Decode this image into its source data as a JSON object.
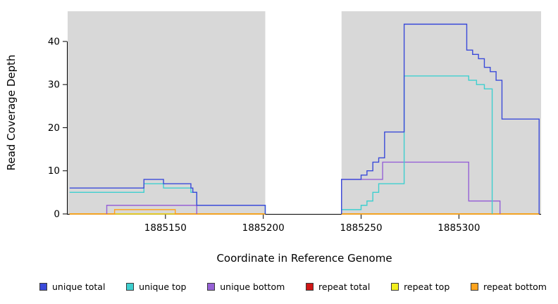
{
  "chart_data": {
    "type": "line",
    "line_style": "step-after",
    "title": "",
    "xlabel": "Coordinate in Reference Genome",
    "ylabel": "Read Coverage Depth",
    "xlim": [
      1885100,
      1885342
    ],
    "ylim": [
      0,
      47
    ],
    "xticks": [
      1885150,
      1885200,
      1885250,
      1885300
    ],
    "yticks": [
      0,
      10,
      20,
      30,
      40
    ],
    "grid": false,
    "panel_bg": "#d8d8d8",
    "axis_color": "#000000",
    "gap_region": {
      "x0": 1885201,
      "x1": 1885240,
      "color": "#ffffff"
    },
    "legend_position": "bottom",
    "legend": [
      "unique total",
      "unique top",
      "unique bottom",
      "repeat total",
      "repeat top",
      "repeat bottom"
    ],
    "series": [
      {
        "name": "repeat total",
        "color": "#d01616",
        "segments": [
          [
            [
              1885101,
              0
            ],
            [
              1885201,
              0
            ]
          ],
          [
            [
              1885240,
              0
            ],
            [
              1885341,
              0
            ]
          ]
        ]
      },
      {
        "name": "repeat top",
        "color": "#f2ef1d",
        "segments": [
          [
            [
              1885101,
              0
            ],
            [
              1885201,
              0
            ]
          ],
          [
            [
              1885240,
              0
            ],
            [
              1885341,
              0
            ]
          ]
        ]
      },
      {
        "name": "repeat bottom",
        "color": "#ffa41e",
        "segments": [
          [
            [
              1885101,
              0
            ],
            [
              1885124,
              1
            ],
            [
              1885155,
              0
            ],
            [
              1885201,
              0
            ]
          ],
          [
            [
              1885240,
              0
            ],
            [
              1885341,
              0
            ]
          ]
        ]
      },
      {
        "name": "unique bottom",
        "color": "#9661d6",
        "segments": [
          [
            [
              1885120,
              0
            ],
            [
              1885120,
              2
            ],
            [
              1885166,
              0
            ]
          ],
          [
            [
              1885240,
              0
            ],
            [
              1885240,
              8
            ],
            [
              1885261,
              12
            ],
            [
              1885305,
              3
            ],
            [
              1885321,
              0
            ]
          ]
        ]
      },
      {
        "name": "unique top",
        "color": "#3ecfcf",
        "segments": [
          [
            [
              1885101,
              5
            ],
            [
              1885139,
              7
            ],
            [
              1885149,
              6
            ],
            [
              1885163,
              5
            ],
            [
              1885166,
              2
            ],
            [
              1885201,
              0
            ]
          ],
          [
            [
              1885240,
              0
            ],
            [
              1885240,
              1
            ],
            [
              1885250,
              2
            ],
            [
              1885253,
              3
            ],
            [
              1885256,
              5
            ],
            [
              1885259,
              7
            ],
            [
              1885272,
              32
            ],
            [
              1885305,
              31
            ],
            [
              1885309,
              30
            ],
            [
              1885313,
              29
            ],
            [
              1885317,
              0
            ]
          ]
        ]
      },
      {
        "name": "unique total",
        "color": "#3a4ad9",
        "segments": [
          [
            [
              1885101,
              6
            ],
            [
              1885139,
              8
            ],
            [
              1885149,
              7
            ],
            [
              1885163,
              6
            ],
            [
              1885164,
              5
            ],
            [
              1885166,
              2
            ],
            [
              1885201,
              0
            ]
          ],
          [
            [
              1885240,
              0
            ],
            [
              1885240,
              8
            ],
            [
              1885250,
              9
            ],
            [
              1885253,
              10
            ],
            [
              1885256,
              12
            ],
            [
              1885259,
              13
            ],
            [
              1885262,
              19
            ],
            [
              1885272,
              44
            ],
            [
              1885304,
              38
            ],
            [
              1885307,
              37
            ],
            [
              1885310,
              36
            ],
            [
              1885313,
              34
            ],
            [
              1885316,
              33
            ],
            [
              1885319,
              31
            ],
            [
              1885322,
              22
            ],
            [
              1885341,
              0
            ]
          ]
        ]
      }
    ]
  }
}
